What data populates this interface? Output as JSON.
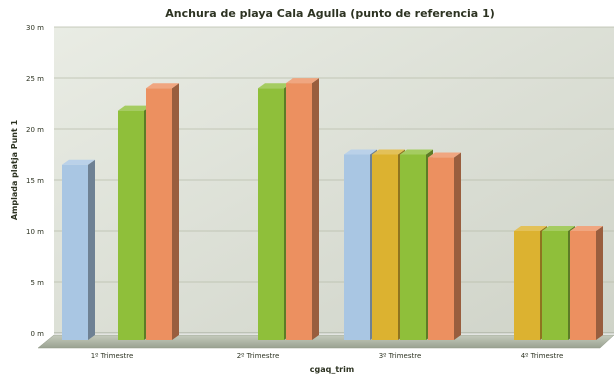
{
  "chart_data": {
    "type": "bar",
    "title": "Anchura de playa Cala Agulla (punto de referencia 1)",
    "xlabel": "cgaq_trim",
    "ylabel": "Amplada platja Punt 1",
    "ylim": [
      0,
      30
    ],
    "yticks": [
      0,
      5,
      10,
      15,
      20,
      25,
      30
    ],
    "y_unit": "m",
    "grid": true,
    "legend": "none",
    "categories": [
      "1º Trimestre",
      "2º Trimestre",
      "3º Trimestre",
      "4º Trimestre"
    ],
    "series": [
      {
        "color": "#a9c6e3",
        "values": [
          16.5,
          null,
          17.5,
          null
        ]
      },
      {
        "color": "#dcb230",
        "values": [
          null,
          null,
          17.5,
          10.0
        ]
      },
      {
        "color": "#8fbf3a",
        "values": [
          21.8,
          24.0,
          17.5,
          10.0
        ]
      },
      {
        "color": "#ec9060",
        "values": [
          24.0,
          24.5,
          17.2,
          10.0
        ]
      }
    ]
  }
}
